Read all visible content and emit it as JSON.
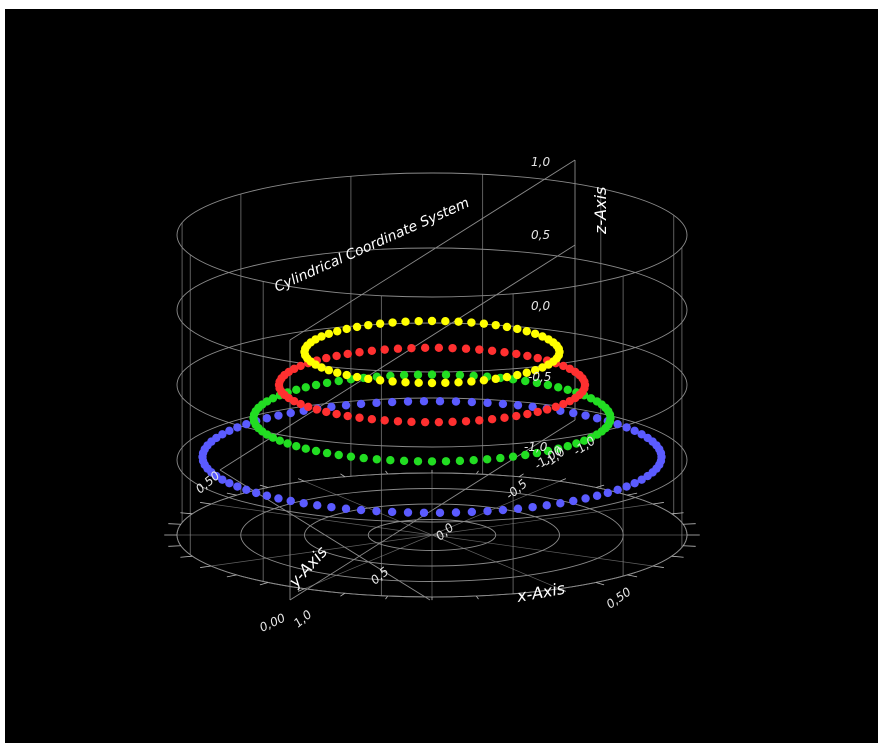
{
  "chart_data": {
    "type": "scatter",
    "title": "Cylindrical Coordinate System",
    "xlabel": "x-Axis",
    "ylabel": "y-Axis",
    "zlabel": "z-Axis",
    "polar_tick_labels": [
      "0,00",
      "0,50",
      "0,50"
    ],
    "y_tick_labels": [
      "1,0",
      "0,5",
      "0,0",
      "-0,5",
      "-1,0"
    ],
    "z_tick_labels": [
      "1,0",
      "0,5",
      "0,0",
      "-0,5",
      "-1,0"
    ],
    "corner_tick_labels": [
      "-1,00",
      "-1,0"
    ],
    "zlim": [
      -1,
      1
    ],
    "rlim": [
      0,
      1
    ],
    "grid": true,
    "background": "#000000",
    "series": [
      {
        "color": "#5b5bff",
        "r": 0.9,
        "z": -0.48,
        "points": 90
      },
      {
        "color": "#22dd22",
        "r": 0.7,
        "z": -0.22,
        "points": 80
      },
      {
        "color": "#ff3030",
        "r": 0.6,
        "z": 0.0,
        "points": 70
      },
      {
        "color": "#ffff00",
        "r": 0.5,
        "z": 0.22,
        "points": 60
      }
    ]
  }
}
